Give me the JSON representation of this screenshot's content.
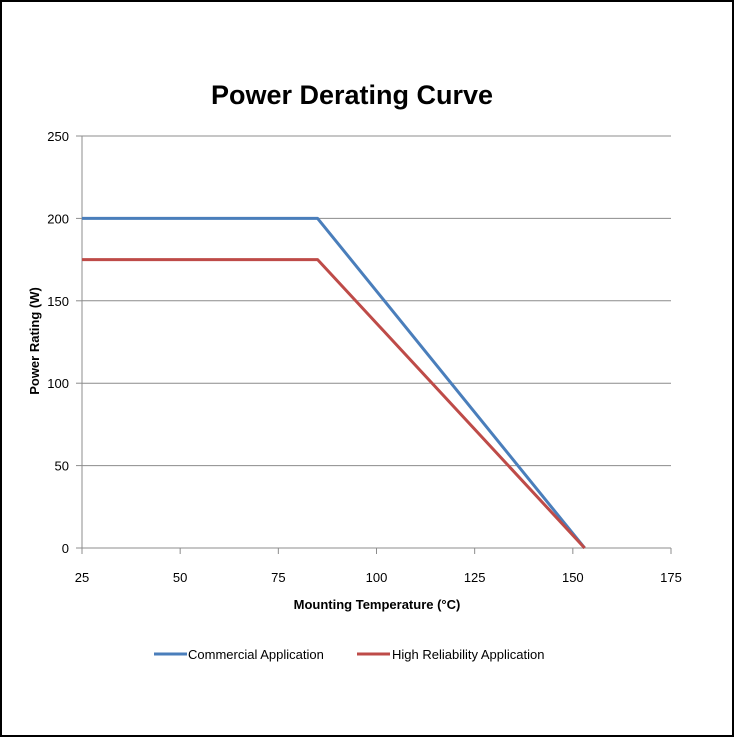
{
  "chart_data": {
    "type": "line",
    "title": "Power Derating Curve",
    "xlabel": "Mounting Temperature (°C)",
    "ylabel": "Power Rating (W)",
    "xlim": [
      25,
      175
    ],
    "ylim": [
      0,
      250
    ],
    "xticks": [
      25,
      50,
      75,
      100,
      125,
      150,
      175
    ],
    "yticks": [
      0,
      50,
      100,
      150,
      200,
      250
    ],
    "grid": "horizontal",
    "legend_position": "bottom",
    "series": [
      {
        "name": "Commercial Application",
        "color": "#4a7ebb",
        "points": [
          [
            25,
            200
          ],
          [
            85,
            200
          ],
          [
            153,
            0
          ]
        ]
      },
      {
        "name": "High Reliability Application",
        "color": "#be4b48",
        "points": [
          [
            25,
            175
          ],
          [
            85,
            175
          ],
          [
            153,
            0
          ]
        ]
      }
    ]
  }
}
